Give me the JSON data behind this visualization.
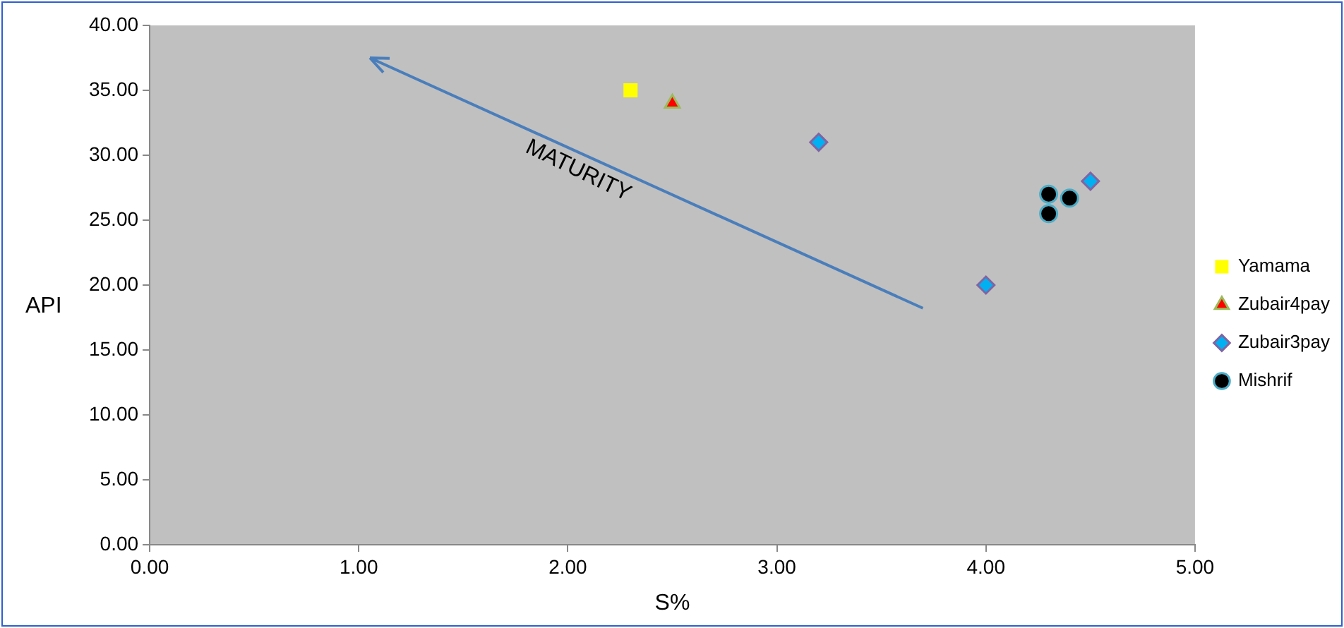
{
  "chart_data": {
    "type": "scatter",
    "xlabel": "S%",
    "ylabel": "API",
    "annotations": [
      "MATURITY"
    ],
    "xlim": [
      0,
      5
    ],
    "xticks": [
      {
        "value": 0,
        "label": "0.00"
      },
      {
        "value": 1,
        "label": "1.00"
      },
      {
        "value": 2,
        "label": "2.00"
      },
      {
        "value": 3,
        "label": "3.00"
      },
      {
        "value": 4,
        "label": "4.00"
      },
      {
        "value": 5,
        "label": "5.00"
      }
    ],
    "ylim": [
      0,
      40
    ],
    "yticks": [
      {
        "value": 0,
        "label": "0.00"
      },
      {
        "value": 5,
        "label": "5.00"
      },
      {
        "value": 10,
        "label": "10.00"
      },
      {
        "value": 15,
        "label": "15.00"
      },
      {
        "value": 20,
        "label": "20.00"
      },
      {
        "value": 25,
        "label": "25.00"
      },
      {
        "value": 30,
        "label": "30.00"
      },
      {
        "value": 35,
        "label": "35.00"
      },
      {
        "value": 40,
        "label": "40.00"
      }
    ],
    "grid": false,
    "legend": "right",
    "series": [
      {
        "name": "Yamama",
        "color": "#ffff00",
        "marker": "square",
        "x": [
          2.3
        ],
        "values": [
          35
        ]
      },
      {
        "name": "Zubair4pay",
        "color": "#ff0000",
        "marker": "triangle",
        "x": [
          2.5
        ],
        "values": [
          34
        ]
      },
      {
        "name": "Zubair3pay",
        "color": "#00b0f0",
        "marker": "diamond",
        "x": [
          3.2,
          4.0,
          4.5
        ],
        "values": [
          31,
          20,
          28
        ]
      },
      {
        "name": "Mishrif",
        "color": "#000000",
        "marker": "circle",
        "x": [
          4.3,
          4.3,
          4.4
        ],
        "values": [
          27,
          25.5,
          26.7
        ]
      }
    ]
  }
}
